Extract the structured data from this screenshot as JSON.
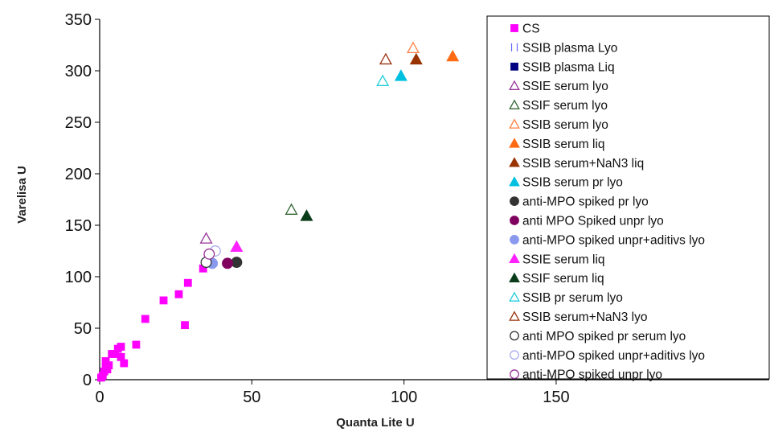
{
  "chart_data": {
    "type": "scatter",
    "xlabel": "Quanta Lite U",
    "ylabel": "Varelisa  U",
    "xlim": [
      0,
      220
    ],
    "ylim": [
      0,
      350
    ],
    "xticks": [
      0,
      50,
      100,
      150
    ],
    "yticks": [
      0,
      50,
      100,
      150,
      200,
      250,
      300,
      350
    ],
    "grid": false,
    "legend_position": "right",
    "series": [
      {
        "name": "CS",
        "marker": "square-filled",
        "color": "#ff00ff",
        "points": [
          [
            0.5,
            2
          ],
          [
            1,
            4
          ],
          [
            1.5,
            8
          ],
          [
            2,
            12
          ],
          [
            2.5,
            10
          ],
          [
            2,
            18
          ],
          [
            3,
            14
          ],
          [
            4,
            25
          ],
          [
            5,
            25
          ],
          [
            6,
            30
          ],
          [
            7,
            32
          ],
          [
            7,
            22
          ],
          [
            8,
            16
          ],
          [
            12,
            34
          ],
          [
            15,
            59
          ],
          [
            21,
            77
          ],
          [
            26,
            83
          ],
          [
            28,
            53
          ],
          [
            29,
            94
          ],
          [
            34,
            108
          ]
        ]
      },
      {
        "name": "SSIB plasma Lyo",
        "marker": "bar-open",
        "color": "#6666ff",
        "points": []
      },
      {
        "name": "SSIB plasma Liq",
        "marker": "square-filled",
        "color": "#000080",
        "points": []
      },
      {
        "name": "SSIE serum lyo",
        "marker": "triangle-open",
        "color": "#993399",
        "points": [
          [
            35,
            137
          ]
        ]
      },
      {
        "name": "SSIF serum lyo",
        "marker": "triangle-open",
        "color": "#336633",
        "points": [
          [
            63,
            165
          ]
        ]
      },
      {
        "name": "SSIB serum lyo",
        "marker": "triangle-open",
        "color": "#ff8040",
        "points": [
          [
            103,
            322
          ]
        ]
      },
      {
        "name": "SSIB serum liq",
        "marker": "triangle-filled",
        "color": "#ff6a13",
        "points": [
          [
            116,
            314
          ]
        ]
      },
      {
        "name": "SSIB serum+NaN3 liq",
        "marker": "triangle-filled",
        "color": "#993300",
        "points": [
          [
            104,
            311
          ]
        ]
      },
      {
        "name": "SSIB serum pr lyo",
        "marker": "triangle-filled",
        "color": "#00c0e0",
        "points": [
          [
            99,
            295
          ]
        ]
      },
      {
        "name": "anti-MPO spiked pr lyo",
        "marker": "circle-filled",
        "color": "#333333",
        "points": [
          [
            45,
            114
          ]
        ]
      },
      {
        "name": "anti MPO Spiked unpr lyo",
        "marker": "circle-filled",
        "color": "#800060",
        "points": [
          [
            42,
            113
          ]
        ]
      },
      {
        "name": "anti-MPO spiked unpr+aditivs lyo",
        "marker": "circle-filled",
        "color": "#8899ee",
        "points": [
          [
            37,
            113
          ]
        ]
      },
      {
        "name": "SSIE serum liq",
        "marker": "triangle-filled",
        "color": "#ff22ff",
        "points": [
          [
            45,
            129
          ]
        ]
      },
      {
        "name": "SSIF serum liq",
        "marker": "triangle-filled",
        "color": "#0b3d1a",
        "points": [
          [
            68,
            159
          ]
        ]
      },
      {
        "name": "SSIB pr serum lyo",
        "marker": "triangle-open",
        "color": "#22ccdd",
        "points": [
          [
            93,
            290
          ]
        ]
      },
      {
        "name": "SSIB serum+NaN3 lyo",
        "marker": "triangle-open",
        "color": "#993311",
        "points": [
          [
            94,
            311
          ]
        ]
      },
      {
        "name": "anti MPO spiked pr serum lyo",
        "marker": "circle-open",
        "color": "#333333",
        "points": [
          [
            35,
            114
          ]
        ]
      },
      {
        "name": "anti-MPO spiked unpr+aditivs lyo",
        "marker": "circle-open",
        "color": "#aaaaee",
        "points": [
          [
            38,
            125
          ]
        ]
      },
      {
        "name": "anti-MPO spiked unpr lyo",
        "marker": "circle-open",
        "color": "#993399",
        "points": [
          [
            36,
            122
          ]
        ]
      }
    ]
  }
}
